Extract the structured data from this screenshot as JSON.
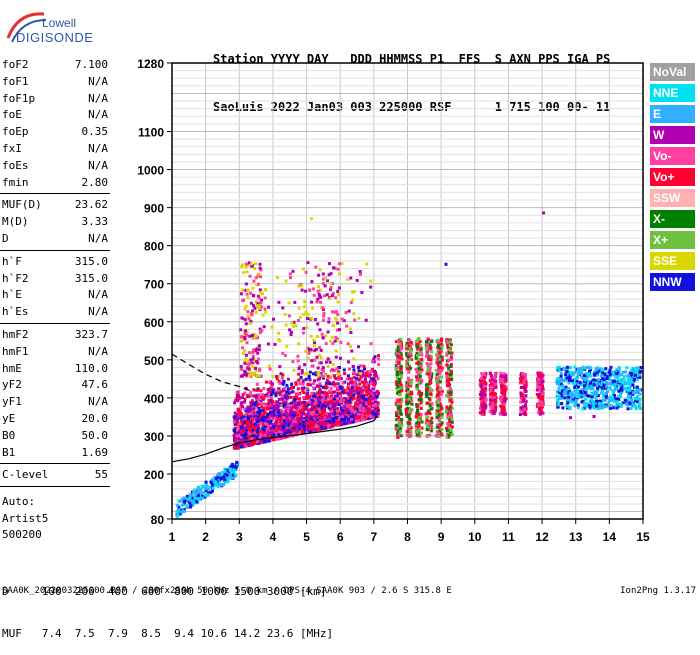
{
  "logo": {
    "line1": "Lowell",
    "line2": "DIGISONDE"
  },
  "header": {
    "line1": "Station YYYY DAY   DDD HHMMSS P1  FFS  S AXN PPS IGA PS",
    "line2": "SaoLuis 2022 Jan03 003 225000 RSF      1 715 100 00- 11"
  },
  "params_group1": [
    {
      "name": "foF2",
      "value": "7.100"
    },
    {
      "name": "foF1",
      "value": "N/A"
    },
    {
      "name": "foF1p",
      "value": "N/A"
    },
    {
      "name": "foE",
      "value": "N/A"
    },
    {
      "name": "foEp",
      "value": "0.35"
    },
    {
      "name": "fxI",
      "value": "N/A"
    },
    {
      "name": "foEs",
      "value": "N/A"
    },
    {
      "name": "fmin",
      "value": "2.80"
    }
  ],
  "params_group2": [
    {
      "name": "MUF(D)",
      "value": "23.62"
    },
    {
      "name": "M(D)",
      "value": "3.33"
    },
    {
      "name": "D",
      "value": "N/A"
    }
  ],
  "params_group3": [
    {
      "name": "h`F",
      "value": "315.0"
    },
    {
      "name": "h`F2",
      "value": "315.0"
    },
    {
      "name": "h`E",
      "value": "N/A"
    },
    {
      "name": "h`Es",
      "value": "N/A"
    }
  ],
  "params_group4": [
    {
      "name": "hmF2",
      "value": "323.7"
    },
    {
      "name": "hmF1",
      "value": "N/A"
    },
    {
      "name": "hmE",
      "value": "110.0"
    },
    {
      "name": "yF2",
      "value": "47.6"
    },
    {
      "name": "yF1",
      "value": "N/A"
    },
    {
      "name": "yE",
      "value": "20.0"
    },
    {
      "name": "B0",
      "value": "50.0"
    },
    {
      "name": "B1",
      "value": "1.69"
    }
  ],
  "params_group5": [
    {
      "name": "C-level",
      "value": "55"
    }
  ],
  "auto_info": [
    "Auto:",
    "Artist5",
    "500200"
  ],
  "legend": [
    {
      "label": "NoVal",
      "color": "#a0a0a0"
    },
    {
      "label": "NNE",
      "color": "#00e0f0"
    },
    {
      "label": "E",
      "color": "#30b0ff"
    },
    {
      "label": "W",
      "color": "#b000b0"
    },
    {
      "label": "Vo-",
      "color": "#ff40a0"
    },
    {
      "label": "Vo+",
      "color": "#ff0030"
    },
    {
      "label": "SSW",
      "color": "#ffb0b0"
    },
    {
      "label": "X-",
      "color": "#008000"
    },
    {
      "label": "X+",
      "color": "#70c040"
    },
    {
      "label": "SSE",
      "color": "#d8d800"
    },
    {
      "label": "NNW",
      "color": "#1010e0"
    }
  ],
  "footer": {
    "line1": "D     100  200  400  600  800 1000 1500 3000 [km]",
    "line2": "MUF   7.4  7.5  7.9  8.5  9.4 10.6 14.2 23.6 [MHz]"
  },
  "bottom_line": "SAA0K_2022003225000.RSF / 280fx256h 50 kHz 5.0 km / DPS-4 SAA0K 903 / 2.6 S 315.8 E",
  "version": "Ion2Png 1.3.17",
  "chart_data": {
    "type": "scatter",
    "title": "",
    "xlabel": "",
    "ylabel": "",
    "x_ticks": [
      "1",
      "2",
      "3",
      "4",
      "5",
      "6",
      "7",
      "8",
      "9",
      "10",
      "11",
      "12",
      "13",
      "14",
      "15"
    ],
    "y_ticks": [
      "80",
      "200",
      "300",
      "400",
      "500",
      "600",
      "700",
      "800",
      "900",
      "1000",
      "1100",
      "1280"
    ],
    "xlim": [
      1,
      15
    ],
    "ylim": [
      80,
      1280
    ],
    "grid": true,
    "series": [
      {
        "color": "#000000",
        "style": "solid",
        "x": [
          1.0,
          1.5,
          2.0,
          2.5,
          3.0,
          3.5,
          4.0,
          4.5,
          5.0,
          5.5,
          6.0,
          6.5,
          7.0,
          7.1
        ],
        "y": [
          232,
          240,
          252,
          268,
          282,
          290,
          296,
          301,
          306,
          312,
          318,
          326,
          340,
          352
        ]
      },
      {
        "color": "#000000",
        "style": "dashed",
        "x": [
          1.0,
          1.5,
          2.0,
          2.5,
          3.0,
          3.3
        ],
        "y": [
          515,
          488,
          462,
          442,
          430,
          420
        ]
      }
    ],
    "echo_clusters": [
      {
        "x_range": [
          1.1,
          2.9
        ],
        "y_range": [
          110,
          240
        ],
        "dominant_colors": [
          "#30b0ff",
          "#00e0f0",
          "#1010e0"
        ]
      },
      {
        "x_range": [
          2.8,
          7.1
        ],
        "y_range": [
          260,
          460
        ],
        "dominant_colors": [
          "#ff40a0",
          "#b000b0",
          "#ff0030",
          "#1010e0"
        ]
      },
      {
        "x_range": [
          3.0,
          6.9
        ],
        "y_range": [
          460,
          760
        ],
        "dominant_colors": [
          "#b000b0",
          "#ff40a0",
          "#d8d800"
        ]
      },
      {
        "x_range": [
          7.4,
          9.3
        ],
        "y_range": [
          300,
          560
        ],
        "dominant_colors": [
          "#ff40a0",
          "#ff0030",
          "#008000",
          "#70c040"
        ]
      },
      {
        "x_range": [
          10.0,
          12.2
        ],
        "y_range": [
          330,
          480
        ],
        "dominant_colors": [
          "#ff0030",
          "#ff40a0",
          "#b000b0"
        ]
      },
      {
        "x_range": [
          12.4,
          14.9
        ],
        "y_range": [
          360,
          500
        ],
        "dominant_colors": [
          "#00e0f0",
          "#30b0ff",
          "#1010e0"
        ]
      }
    ]
  }
}
